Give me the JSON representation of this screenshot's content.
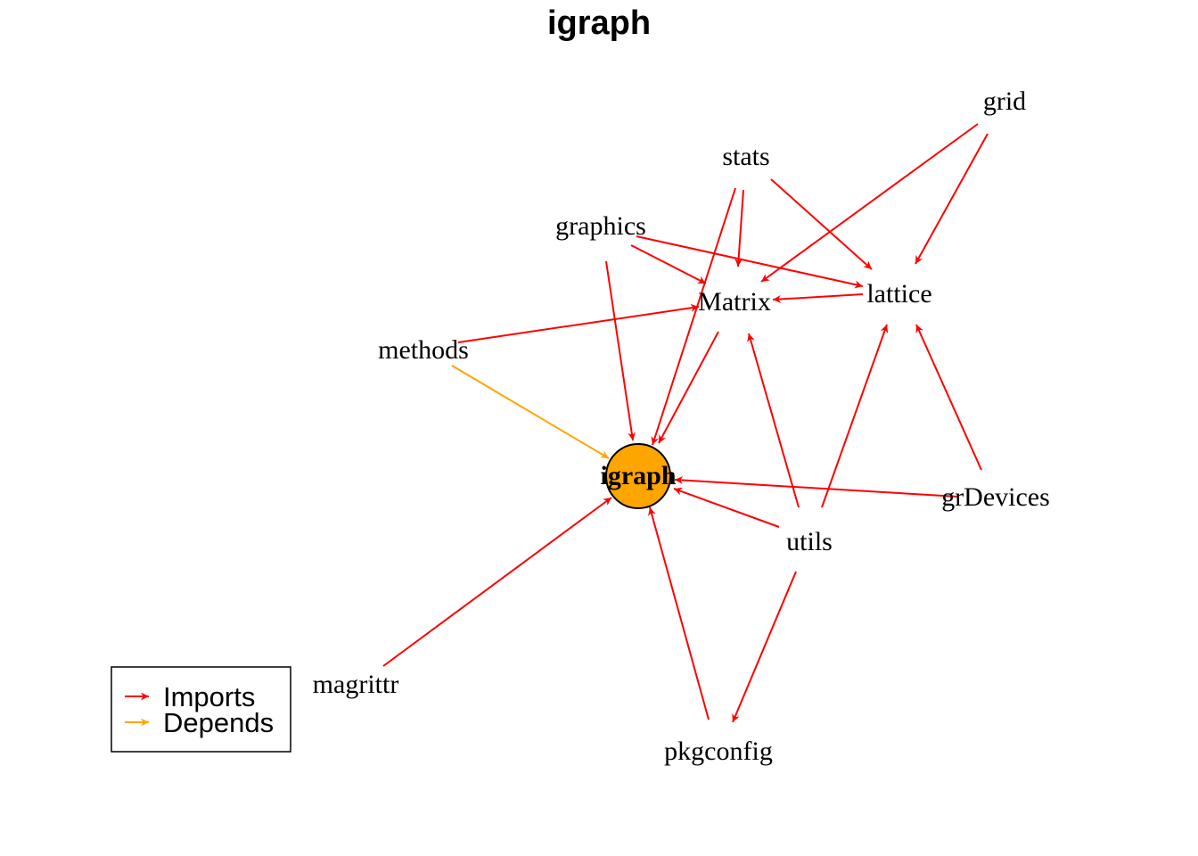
{
  "title": "igraph",
  "colors": {
    "imports": "#ff0000",
    "depends": "#ffa500",
    "center_fill": "#ffa500",
    "center_stroke": "#000000"
  },
  "nodes": [
    {
      "id": "igraph",
      "label": "igraph",
      "center": true
    },
    {
      "id": "grid",
      "label": "grid"
    },
    {
      "id": "stats",
      "label": "stats"
    },
    {
      "id": "graphics",
      "label": "graphics"
    },
    {
      "id": "Matrix",
      "label": "Matrix"
    },
    {
      "id": "lattice",
      "label": "lattice"
    },
    {
      "id": "methods",
      "label": "methods"
    },
    {
      "id": "grDevices",
      "label": "grDevices"
    },
    {
      "id": "utils",
      "label": "utils"
    },
    {
      "id": "magrittr",
      "label": "magrittr"
    },
    {
      "id": "pkgconfig",
      "label": "pkgconfig"
    }
  ],
  "edges": [
    {
      "from": "grid",
      "to": "Matrix",
      "type": "imports"
    },
    {
      "from": "grid",
      "to": "lattice",
      "type": "imports"
    },
    {
      "from": "stats",
      "to": "Matrix",
      "type": "imports"
    },
    {
      "from": "stats",
      "to": "lattice",
      "type": "imports"
    },
    {
      "from": "stats",
      "to": "igraph",
      "type": "imports"
    },
    {
      "from": "graphics",
      "to": "Matrix",
      "type": "imports"
    },
    {
      "from": "graphics",
      "to": "lattice",
      "type": "imports"
    },
    {
      "from": "graphics",
      "to": "igraph",
      "type": "imports"
    },
    {
      "from": "lattice",
      "to": "Matrix",
      "type": "imports"
    },
    {
      "from": "methods",
      "to": "Matrix",
      "type": "imports"
    },
    {
      "from": "methods",
      "to": "igraph",
      "type": "depends"
    },
    {
      "from": "Matrix",
      "to": "igraph",
      "type": "imports"
    },
    {
      "from": "utils",
      "to": "Matrix",
      "type": "imports"
    },
    {
      "from": "utils",
      "to": "lattice",
      "type": "imports"
    },
    {
      "from": "utils",
      "to": "igraph",
      "type": "imports"
    },
    {
      "from": "utils",
      "to": "pkgconfig",
      "type": "imports"
    },
    {
      "from": "grDevices",
      "to": "lattice",
      "type": "imports"
    },
    {
      "from": "grDevices",
      "to": "igraph",
      "type": "imports"
    },
    {
      "from": "magrittr",
      "to": "igraph",
      "type": "imports"
    },
    {
      "from": "pkgconfig",
      "to": "igraph",
      "type": "imports"
    }
  ],
  "legend": {
    "items": [
      {
        "label": "Imports",
        "type": "imports"
      },
      {
        "label": "Depends",
        "type": "depends"
      }
    ]
  }
}
